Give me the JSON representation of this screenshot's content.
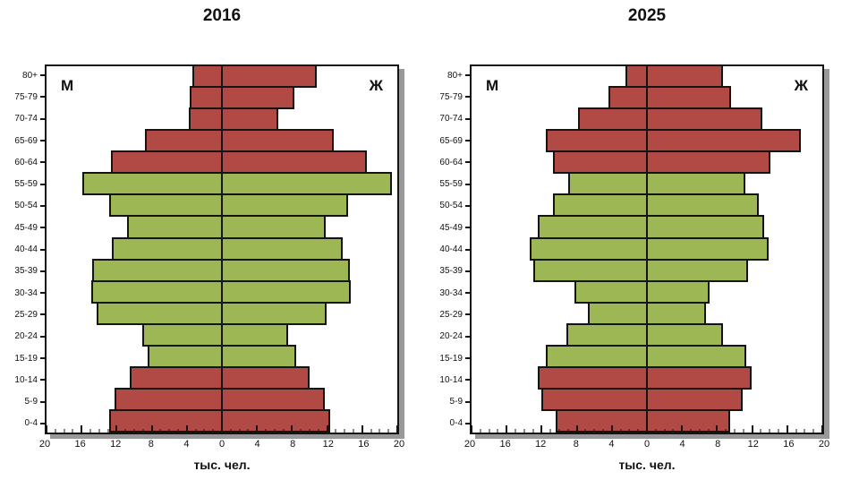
{
  "colors": {
    "red": "#b14a45",
    "green": "#9eb755",
    "bar_border": "#141414",
    "axis": "#141414",
    "shadow": "#999999"
  },
  "chart_data": [
    {
      "type": "bar",
      "subtype": "population_pyramid",
      "title": "2016",
      "xlabel": "тыс. чел.",
      "left_label": "М",
      "right_label": "Ж",
      "xlim": [
        -20,
        20
      ],
      "grid": false,
      "legend": "none",
      "x_tick_labels": [
        "20",
        "16",
        "12",
        "8",
        "4",
        "0",
        "4",
        "8",
        "12",
        "16",
        "20"
      ],
      "categories_top_to_bottom": [
        "80+",
        "75-79",
        "70-74",
        "65-69",
        "60-64",
        "55-59",
        "50-54",
        "45-49",
        "40-44",
        "35-39",
        "30-34",
        "25-29",
        "20-24",
        "15-19",
        "10-14",
        "5-9",
        "0-4"
      ],
      "row_color_keys": [
        "red",
        "red",
        "red",
        "red",
        "red",
        "green",
        "green",
        "green",
        "green",
        "green",
        "green",
        "green",
        "green",
        "green",
        "red",
        "red",
        "red"
      ],
      "series": [
        {
          "name": "М",
          "side": "left",
          "values": [
            3.5,
            3.8,
            3.9,
            8.9,
            12.8,
            16.0,
            13.0,
            10.9,
            12.7,
            14.9,
            15.0,
            14.4,
            9.2,
            8.6,
            10.6,
            12.3,
            13.0
          ]
        },
        {
          "name": "Ж",
          "side": "right",
          "values": [
            10.9,
            8.4,
            6.5,
            12.9,
            16.6,
            19.5,
            14.5,
            11.9,
            13.9,
            14.7,
            14.8,
            12.0,
            7.7,
            8.6,
            10.1,
            11.8,
            12.4
          ]
        }
      ]
    },
    {
      "type": "bar",
      "subtype": "population_pyramid",
      "title": "2025",
      "xlabel": "тыс. чел.",
      "left_label": "М",
      "right_label": "Ж",
      "xlim": [
        -20,
        20
      ],
      "grid": false,
      "legend": "none",
      "x_tick_labels": [
        "20",
        "16",
        "12",
        "8",
        "4",
        "0",
        "4",
        "8",
        "12",
        "16",
        "20"
      ],
      "categories_top_to_bottom": [
        "80+",
        "75-79",
        "70-74",
        "65-69",
        "60-64",
        "55-59",
        "50-54",
        "45-49",
        "40-44",
        "35-39",
        "30-34",
        "25-29",
        "20-24",
        "15-19",
        "10-14",
        "5-9",
        "0-4"
      ],
      "row_color_keys": [
        "red",
        "red",
        "red",
        "red",
        "red",
        "green",
        "green",
        "green",
        "green",
        "green",
        "green",
        "green",
        "green",
        "green",
        "red",
        "red",
        "red"
      ],
      "series": [
        {
          "name": "М",
          "side": "left",
          "values": [
            2.6,
            4.5,
            8.0,
            11.6,
            10.8,
            9.1,
            10.8,
            12.6,
            13.5,
            13.1,
            8.4,
            6.8,
            9.3,
            11.6,
            12.6,
            12.1,
            10.5
          ]
        },
        {
          "name": "Ж",
          "side": "right",
          "values": [
            8.8,
            9.7,
            13.3,
            17.7,
            14.2,
            11.3,
            12.9,
            13.5,
            14.0,
            11.6,
            7.2,
            6.8,
            8.8,
            11.4,
            12.0,
            11.0,
            9.6
          ]
        }
      ]
    }
  ]
}
